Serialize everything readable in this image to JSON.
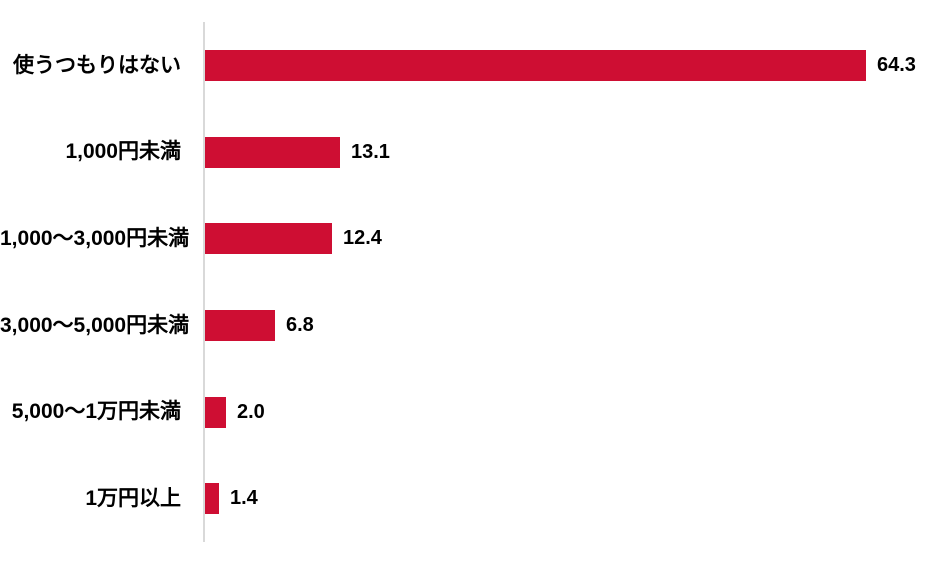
{
  "chart_data": {
    "type": "bar",
    "orientation": "horizontal",
    "title": "",
    "xlabel": "",
    "ylabel": "",
    "grid": false,
    "legend": false,
    "categories": [
      "使うつもりはない",
      "1,000円未満",
      "1,000〜3,000円未満",
      "3,000〜5,000円未満",
      "5,000〜1万円未満",
      "1万円以上"
    ],
    "values": [
      64.3,
      13.1,
      12.4,
      6.8,
      2.0,
      1.4
    ],
    "value_labels": [
      "64.3",
      "13.1",
      "12.4",
      "6.8",
      "2.0",
      "1.4"
    ],
    "colors": {
      "bar": "#CE0E33",
      "axis_line": "#D9D9D9",
      "text": "#000000",
      "background": "#FFFFFF"
    }
  }
}
